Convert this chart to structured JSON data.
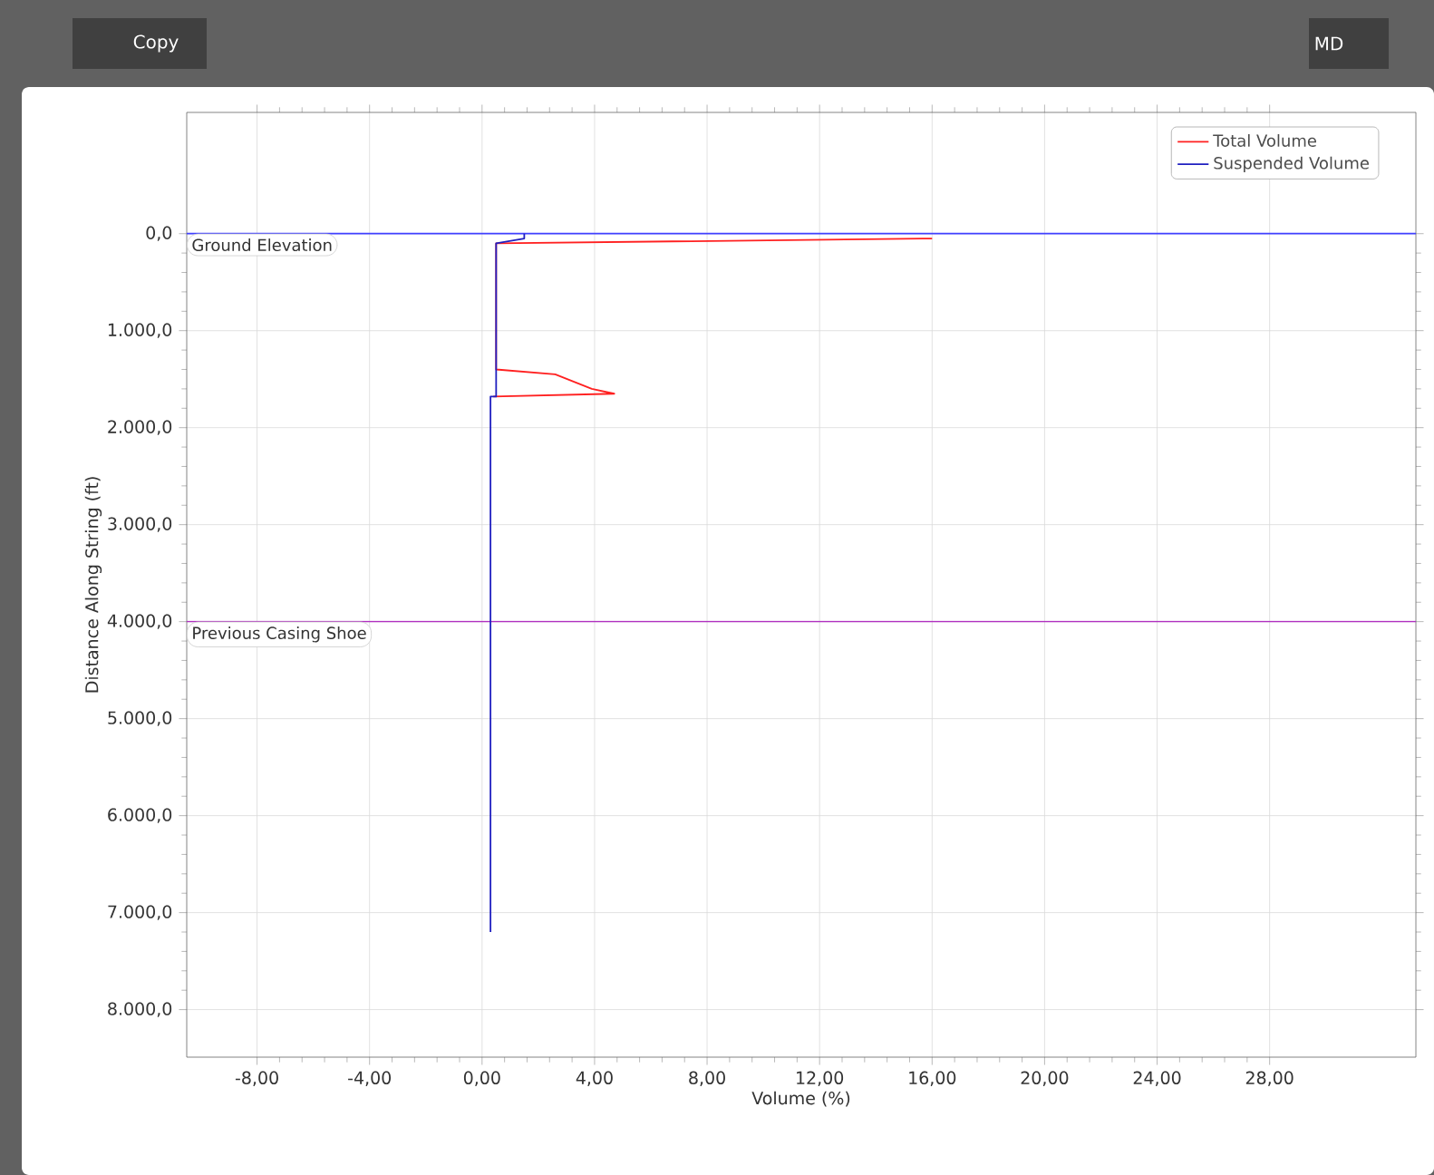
{
  "chart_data": {
    "type": "line",
    "xlabel": "Volume (%)",
    "ylabel": "Distance Along String (ft)",
    "series": [
      {
        "name": "Total Volume",
        "color": "#ff2020",
        "x": [
          16.0,
          0.5,
          0.5,
          2.6,
          3.9,
          4.7,
          0.4
        ],
        "values": [
          50,
          100,
          1400,
          1450,
          1600,
          1650,
          1680
        ]
      },
      {
        "name": "Suspended Volume",
        "color": "#2020c0",
        "x": [
          1.5,
          1.5,
          0.5,
          0.5,
          0.3,
          0.3
        ],
        "values": [
          0,
          50,
          100,
          1680,
          1680,
          7200
        ]
      }
    ],
    "xlim": [
      -10.5,
      33.2
    ],
    "ylim": [
      8490,
      -1250
    ],
    "xticks": [
      {
        "value": -8,
        "label": "-8,00"
      },
      {
        "value": -4,
        "label": "-4,00"
      },
      {
        "value": 0,
        "label": "0,00"
      },
      {
        "value": 4,
        "label": "4,00"
      },
      {
        "value": 8,
        "label": "8,00"
      },
      {
        "value": 12,
        "label": "12,00"
      },
      {
        "value": 16,
        "label": "16,00"
      },
      {
        "value": 20,
        "label": "20,00"
      },
      {
        "value": 24,
        "label": "24,00"
      },
      {
        "value": 28,
        "label": "28,00"
      }
    ],
    "yticks": [
      {
        "value": 0,
        "label": "0,0"
      },
      {
        "value": 1000,
        "label": "1.000,0"
      },
      {
        "value": 2000,
        "label": "2.000,0"
      },
      {
        "value": 3000,
        "label": "3.000,0"
      },
      {
        "value": 4000,
        "label": "4.000,0"
      },
      {
        "value": 5000,
        "label": "5.000,0"
      },
      {
        "value": 6000,
        "label": "6.000,0"
      },
      {
        "value": 7000,
        "label": "7.000,0"
      },
      {
        "value": 8000,
        "label": "8.000,0"
      }
    ],
    "ref_lines": [
      {
        "axis": "y",
        "value": 0,
        "label": "Ground Elevation",
        "color": "#4040ff"
      },
      {
        "axis": "y",
        "value": 4000,
        "label": "Previous Casing Shoe",
        "color": "#b030c0"
      }
    ],
    "annotations": [
      "Copy",
      "MD"
    ],
    "grid": true,
    "legend": "top right",
    "marker": "none",
    "line_style": "solid"
  }
}
